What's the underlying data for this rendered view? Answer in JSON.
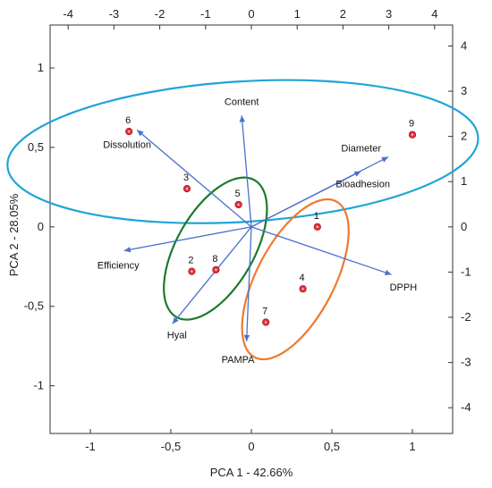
{
  "chart_data": {
    "type": "scatter",
    "subtype": "pca-biplot",
    "xlabel": "PCA 1 - 42.66%",
    "ylabel": "PCA 2 - 28.05%",
    "xlim": [
      -1.25,
      1.25
    ],
    "ylim": [
      -1.3,
      1.27
    ],
    "x_ticks": [
      -1,
      -0.5,
      0,
      0.5,
      1
    ],
    "y_ticks": [
      -1,
      -0.5,
      0,
      0.5,
      1
    ],
    "x_tick_labels": [
      "-1",
      "-0,5",
      "0",
      "0,5",
      "1"
    ],
    "y_tick_labels": [
      "-1",
      "-0,5",
      "0",
      "0,5",
      "1"
    ],
    "secondary_x_ticks": [
      -4,
      -3,
      -2,
      -1,
      0,
      1,
      2,
      3,
      4
    ],
    "secondary_x_tick_labels": [
      "-4",
      "-3",
      "-2",
      "-1",
      "0",
      "1",
      "2",
      "3",
      "4"
    ],
    "secondary_y_ticks": [
      -4,
      -3,
      -2,
      -1,
      0,
      1,
      2,
      3,
      4
    ],
    "secondary_y_tick_labels": [
      "-4",
      "-3",
      "-2",
      "-1",
      "0",
      "1",
      "2",
      "3",
      "4"
    ],
    "secondary_scale": 3.515,
    "grid": false,
    "points": [
      {
        "label": "1",
        "x": 0.41,
        "y": 0.0
      },
      {
        "label": "2",
        "x": -0.37,
        "y": -0.28
      },
      {
        "label": "3",
        "x": -0.4,
        "y": 0.24
      },
      {
        "label": "4",
        "x": 0.32,
        "y": -0.39
      },
      {
        "label": "5",
        "x": -0.08,
        "y": 0.14
      },
      {
        "label": "6",
        "x": -0.76,
        "y": 0.6
      },
      {
        "label": "7",
        "x": 0.09,
        "y": -0.6
      },
      {
        "label": "8",
        "x": -0.22,
        "y": -0.27
      },
      {
        "label": "9",
        "x": 1.0,
        "y": 0.58
      }
    ],
    "loadings": [
      {
        "name": "Content",
        "x": -0.06,
        "y": 0.7
      },
      {
        "name": "Dissolution",
        "x": -0.71,
        "y": 0.61
      },
      {
        "name": "Diameter",
        "x": 0.85,
        "y": 0.44
      },
      {
        "name": "Bioadhesion",
        "x": 0.68,
        "y": 0.35
      },
      {
        "name": "Efficiency",
        "x": -0.79,
        "y": -0.15
      },
      {
        "name": "DPPH",
        "x": 0.87,
        "y": -0.3
      },
      {
        "name": "Hyal",
        "x": -0.49,
        "y": -0.61
      },
      {
        "name": "PAMPA",
        "x": -0.03,
        "y": -0.72
      }
    ],
    "clusters": [
      {
        "members": [
          "3",
          "6",
          "9"
        ],
        "color": "#1ea5d8"
      },
      {
        "members": [
          "2",
          "5",
          "8"
        ],
        "color": "#1c7a2e"
      },
      {
        "members": [
          "1",
          "4",
          "7"
        ],
        "color": "#ee7a2f"
      }
    ],
    "colors": {
      "point_fill": "#e8303d",
      "loading_vector": "#4a70cc"
    }
  }
}
